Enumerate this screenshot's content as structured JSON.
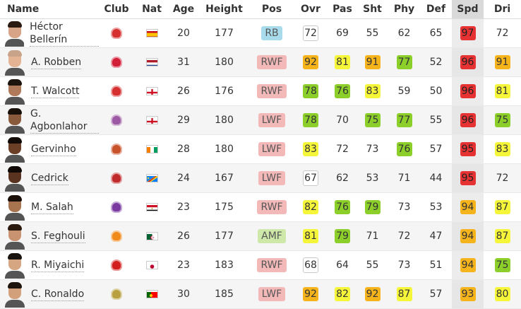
{
  "columns": [
    "Name",
    "Club",
    "Nat",
    "Age",
    "Height",
    "Pos",
    "Ovr",
    "Pas",
    "Sht",
    "Phy",
    "Def",
    "Spd",
    "Dri"
  ],
  "players": [
    {
      "name": "Héctor Bellerín",
      "club_icon": "arsenal-crest-icon",
      "club_color": "#d62f2f",
      "nat_icon": "spain-flag-icon",
      "flag": "es",
      "age": "20",
      "height": "177",
      "pos": "RB",
      "pos_color": "#a8dced",
      "ovr": "72",
      "pas": "69",
      "sht": "55",
      "phy": "62",
      "def": "65",
      "spd": "97",
      "dri": "72",
      "skin": "#d7a487",
      "hair": "#2a1a12",
      "badges": {
        "ovr": "outline",
        "pas": "plain",
        "sht": "plain",
        "phy": "plain",
        "def": "plain",
        "spd": "red",
        "dri": "plain"
      }
    },
    {
      "name": "A. Robben",
      "club_icon": "bayern-crest-icon",
      "club_color": "#d21e36",
      "nat_icon": "netherlands-flag-icon",
      "flag": "nl",
      "age": "31",
      "height": "180",
      "pos": "RWF",
      "pos_color": "#f3b8b8",
      "ovr": "92",
      "pas": "81",
      "sht": "91",
      "phy": "77",
      "def": "52",
      "spd": "96",
      "dri": "91",
      "skin": "#e4b394",
      "hair": "#c9a28a",
      "badges": {
        "ovr": "orange",
        "pas": "yellow",
        "sht": "orange",
        "phy": "green",
        "def": "plain",
        "spd": "red",
        "dri": "orange"
      }
    },
    {
      "name": "T. Walcott",
      "club_icon": "arsenal-crest-icon",
      "club_color": "#d62f2f",
      "nat_icon": "england-flag-icon",
      "flag": "en",
      "age": "26",
      "height": "176",
      "pos": "RWF",
      "pos_color": "#f3b8b8",
      "ovr": "78",
      "pas": "76",
      "sht": "83",
      "phy": "59",
      "def": "50",
      "spd": "96",
      "dri": "81",
      "skin": "#b07a5a",
      "hair": "#1e140e",
      "badges": {
        "ovr": "green",
        "pas": "green",
        "sht": "yellow",
        "phy": "plain",
        "def": "plain",
        "spd": "red",
        "dri": "yellow"
      }
    },
    {
      "name": "G. Agbonlahor",
      "club_icon": "aston-villa-crest-icon",
      "club_color": "#9b5aa3",
      "nat_icon": "england-flag-icon",
      "flag": "en",
      "age": "29",
      "height": "180",
      "pos": "LWF",
      "pos_color": "#f3b8b8",
      "ovr": "78",
      "pas": "70",
      "sht": "75",
      "phy": "77",
      "def": "55",
      "spd": "96",
      "dri": "75",
      "skin": "#8a5a3c",
      "hair": "#1a100a",
      "badges": {
        "ovr": "green",
        "pas": "plain",
        "sht": "green",
        "phy": "green",
        "def": "plain",
        "spd": "red",
        "dri": "green"
      }
    },
    {
      "name": "Gervinho",
      "club_icon": "roma-crest-icon",
      "club_color": "#c8522a",
      "nat_icon": "ivory-coast-flag-icon",
      "flag": "ci",
      "age": "28",
      "height": "180",
      "pos": "LWF",
      "pos_color": "#f3b8b8",
      "ovr": "83",
      "pas": "72",
      "sht": "73",
      "phy": "76",
      "def": "57",
      "spd": "95",
      "dri": "83",
      "skin": "#6b3f26",
      "hair": "#120a06",
      "badges": {
        "ovr": "yellow",
        "pas": "plain",
        "sht": "plain",
        "phy": "green",
        "def": "plain",
        "spd": "red",
        "dri": "yellow"
      }
    },
    {
      "name": "Cedrick",
      "club_icon": "osasuna-crest-icon",
      "club_color": "#c02a2a",
      "nat_icon": "dr-congo-flag-icon",
      "flag": "cd",
      "age": "24",
      "height": "167",
      "pos": "LWF",
      "pos_color": "#f3b8b8",
      "ovr": "67",
      "pas": "62",
      "sht": "53",
      "phy": "71",
      "def": "44",
      "spd": "95",
      "dri": "72",
      "skin": "#5a3320",
      "hair": "#100805",
      "badges": {
        "ovr": "outline",
        "pas": "plain",
        "sht": "plain",
        "phy": "plain",
        "def": "plain",
        "spd": "red",
        "dri": "plain"
      }
    },
    {
      "name": "M. Salah",
      "club_icon": "fiorentina-crest-icon",
      "club_color": "#7a3aa0",
      "nat_icon": "egypt-flag-icon",
      "flag": "eg",
      "age": "23",
      "height": "175",
      "pos": "RWF",
      "pos_color": "#f3b8b8",
      "ovr": "82",
      "pas": "76",
      "sht": "79",
      "phy": "73",
      "def": "53",
      "spd": "94",
      "dri": "87",
      "skin": "#a8734f",
      "hair": "#1a0f08",
      "badges": {
        "ovr": "yellow",
        "pas": "green",
        "sht": "green",
        "phy": "plain",
        "def": "plain",
        "spd": "orange",
        "dri": "yellow"
      }
    },
    {
      "name": "S. Feghouli",
      "club_icon": "valencia-crest-icon",
      "club_color": "#f08a1a",
      "nat_icon": "algeria-flag-icon",
      "flag": "dz",
      "age": "26",
      "height": "177",
      "pos": "AMF",
      "pos_color": "#cde8a8",
      "ovr": "81",
      "pas": "79",
      "sht": "71",
      "phy": "72",
      "def": "47",
      "spd": "94",
      "dri": "87",
      "skin": "#c99270",
      "hair": "#2a1a10",
      "badges": {
        "ovr": "yellow",
        "pas": "green",
        "sht": "plain",
        "phy": "plain",
        "def": "plain",
        "spd": "orange",
        "dri": "yellow"
      }
    },
    {
      "name": "R. Miyaichi",
      "club_icon": "twente-crest-icon",
      "club_color": "#d21e1e",
      "nat_icon": "japan-flag-icon",
      "flag": "jp",
      "age": "23",
      "height": "183",
      "pos": "RWF",
      "pos_color": "#f3b8b8",
      "ovr": "68",
      "pas": "64",
      "sht": "55",
      "phy": "73",
      "def": "51",
      "spd": "94",
      "dri": "75",
      "skin": "#d6a682",
      "hair": "#1a1410",
      "badges": {
        "ovr": "outline",
        "pas": "plain",
        "sht": "plain",
        "phy": "plain",
        "def": "plain",
        "spd": "orange",
        "dri": "green"
      }
    },
    {
      "name": "C. Ronaldo",
      "club_icon": "real-madrid-crest-icon",
      "club_color": "#b8a040",
      "nat_icon": "portugal-flag-icon",
      "flag": "pt",
      "age": "30",
      "height": "185",
      "pos": "LWF",
      "pos_color": "#f3b8b8",
      "ovr": "92",
      "pas": "82",
      "sht": "92",
      "phy": "87",
      "def": "57",
      "spd": "93",
      "dri": "80",
      "skin": "#d3a07c",
      "hair": "#1e140e",
      "badges": {
        "ovr": "orange",
        "pas": "yellow",
        "sht": "orange",
        "phy": "yellow",
        "def": "plain",
        "spd": "orange",
        "dri": "yellow"
      }
    }
  ],
  "sorted_column": "Spd"
}
